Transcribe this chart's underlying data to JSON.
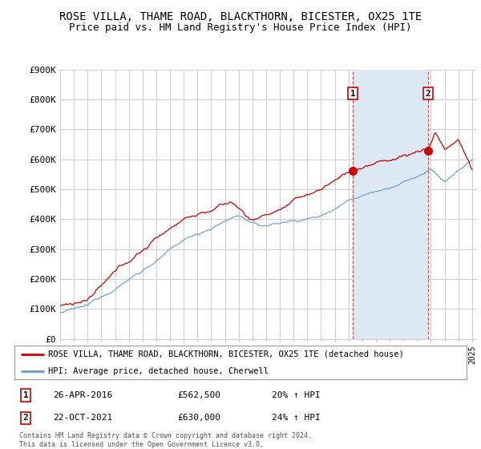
{
  "title": "ROSE VILLA, THAME ROAD, BLACKTHORN, BICESTER, OX25 1TE",
  "subtitle": "Price paid vs. HM Land Registry's House Price Index (HPI)",
  "ylim": [
    0,
    900000
  ],
  "yticks": [
    0,
    100000,
    200000,
    300000,
    400000,
    500000,
    600000,
    700000,
    800000,
    900000
  ],
  "ytick_labels": [
    "£0",
    "£100K",
    "£200K",
    "£300K",
    "£400K",
    "£500K",
    "£600K",
    "£700K",
    "£800K",
    "£900K"
  ],
  "x_start_year": 1995,
  "x_end_year": 2025,
  "sale1_year": 2016.32,
  "sale1_price": 562500,
  "sale1_label": "1",
  "sale1_date": "26-APR-2016",
  "sale1_pct": "20%",
  "sale2_year": 2021.81,
  "sale2_price": 630000,
  "sale2_label": "2",
  "sale2_date": "22-OCT-2021",
  "sale2_pct": "24%",
  "hpi_color": "#6699cc",
  "price_color": "#cc0000",
  "sale_marker_color": "#cc0000",
  "dashed_line_color": "#cc0000",
  "shade_color": "#dde8f5",
  "legend_box_label1": "ROSE VILLA, THAME ROAD, BLACKTHORN, BICESTER, OX25 1TE (detached house)",
  "legend_box_label2": "HPI: Average price, detached house, Cherwell",
  "footnote": "Contains HM Land Registry data © Crown copyright and database right 2024.\nThis data is licensed under the Open Government Licence v3.0.",
  "background_color": "#ffffff",
  "grid_color": "#cccccc",
  "title_fontsize": 10,
  "subtitle_fontsize": 9
}
